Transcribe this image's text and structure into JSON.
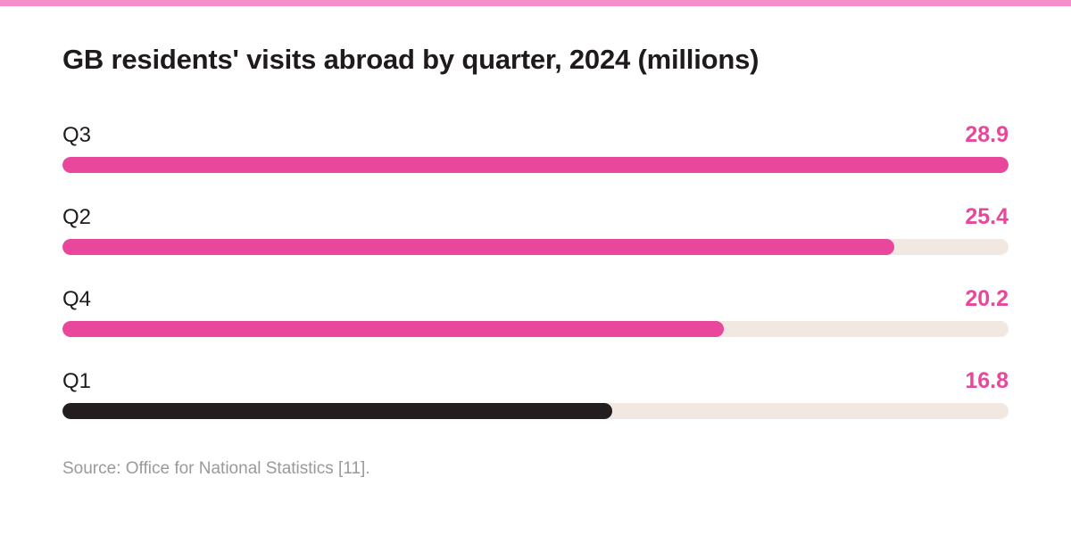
{
  "title": "GB residents' visits abroad by quarter, 2024 (millions)",
  "source": "Source: Office for National Statistics [11].",
  "colors": {
    "stripe": "#f58fcb",
    "accent": "#e8479b",
    "dark": "#221d1f",
    "track": "#f1e8e2"
  },
  "chart_data": {
    "type": "bar",
    "orientation": "horizontal",
    "title": "GB residents' visits abroad by quarter, 2024 (millions)",
    "categories": [
      "Q3",
      "Q2",
      "Q4",
      "Q1"
    ],
    "values": [
      28.9,
      25.4,
      20.2,
      16.8
    ],
    "value_labels": [
      "28.9",
      "25.4",
      "20.2",
      "16.8"
    ],
    "bar_colors": [
      "#e8479b",
      "#e8479b",
      "#e8479b",
      "#221d1f"
    ],
    "xlim": [
      0,
      28.9
    ],
    "grid": false,
    "legend": "none"
  }
}
